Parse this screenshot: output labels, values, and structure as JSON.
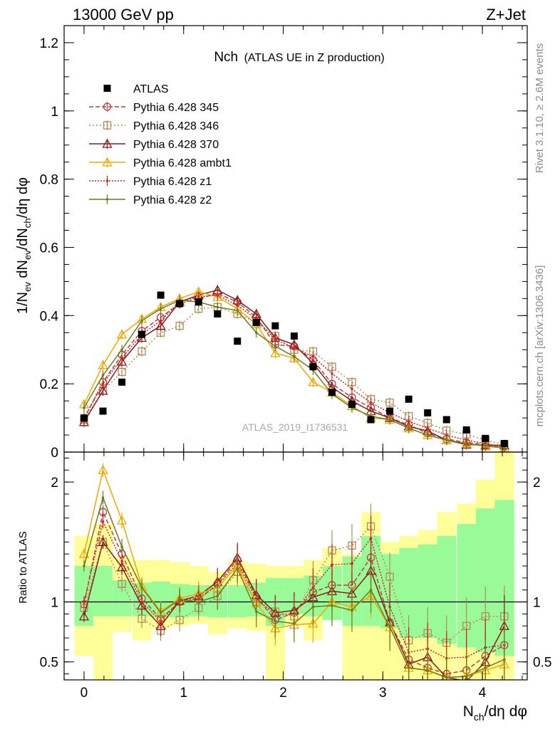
{
  "header": {
    "left": "13000 GeV pp",
    "right": "Z+Jet"
  },
  "side_labels": {
    "rivet": "Rivet 3.1.10, ≥ 2.6M events",
    "mcplots": "mcplots.cern.ch [arXiv:1306.3436]"
  },
  "chart_data": {
    "type": "line",
    "title_main": "Nch",
    "title_sub": "(ATLAS UE in Z production)",
    "watermark": "ATLAS_2019_I1736531",
    "xlabel": {
      "base": "N",
      "sub": "ch",
      "rest": "/dη dφ"
    },
    "ylabel_top": "1/N_ev dN_ch/dN_ch/dη dφ",
    "ylabel_bottom": "Ratio to ATLAS",
    "xlim": [
      -0.2,
      4.45
    ],
    "ylim_top": [
      0,
      1.25
    ],
    "ylim_bottom": [
      0.35,
      2.25
    ],
    "x_ticks": [
      "0",
      "1",
      "2",
      "3",
      "4"
    ],
    "y_ticks_top": [
      "0",
      "0.2",
      "0.4",
      "0.6",
      "0.8",
      "1",
      "1.2"
    ],
    "y_ticks_bottom": [
      "0.5",
      "1",
      "2"
    ],
    "x": [
      0.0,
      0.19,
      0.38,
      0.58,
      0.77,
      0.96,
      1.15,
      1.34,
      1.54,
      1.73,
      1.92,
      2.11,
      2.3,
      2.49,
      2.69,
      2.88,
      3.07,
      3.26,
      3.45,
      3.64,
      3.84,
      4.03,
      4.22
    ],
    "band_yellow_lo": [
      0.55,
      0.3,
      0.75,
      0.68,
      0.78,
      0.8,
      0.82,
      0.73,
      0.78,
      0.76,
      0.35,
      0.8,
      0.68,
      0.9,
      0.25,
      0.25,
      0.25,
      0.25,
      0.25,
      0.25,
      0.25,
      0.25,
      0.25
    ],
    "band_yellow_hi": [
      1.55,
      1.65,
      1.38,
      1.35,
      1.35,
      1.33,
      1.3,
      1.25,
      1.34,
      1.32,
      1.3,
      1.3,
      1.35,
      1.45,
      1.4,
      1.75,
      1.5,
      1.55,
      1.6,
      1.75,
      1.82,
      2.02,
      2.25
    ],
    "band_green_lo": [
      0.8,
      0.88,
      0.88,
      0.88,
      0.87,
      0.87,
      0.88,
      0.87,
      0.87,
      0.88,
      0.8,
      0.9,
      0.88,
      0.85,
      0.8,
      0.8,
      0.78,
      0.7,
      0.7,
      0.65,
      0.62,
      0.58,
      0.55
    ],
    "band_green_hi": [
      1.3,
      1.3,
      1.18,
      1.16,
      1.17,
      1.15,
      1.14,
      1.14,
      1.14,
      1.16,
      1.2,
      1.2,
      1.22,
      1.3,
      1.38,
      1.55,
      1.4,
      1.45,
      1.48,
      1.55,
      1.65,
      1.78,
      1.85
    ],
    "data": {
      "name": "ATLAS",
      "y": [
        0.1,
        0.12,
        0.205,
        0.345,
        0.46,
        0.435,
        0.44,
        0.405,
        0.325,
        0.38,
        0.37,
        0.34,
        0.25,
        0.175,
        0.14,
        0.095,
        0.12,
        0.155,
        0.115,
        0.095,
        0.065,
        0.04,
        0.025
      ]
    },
    "series": [
      {
        "name": "Pythia 6.428 345",
        "color": "#b5403f",
        "dash": "6,3",
        "marker": "circle",
        "y": [
          0.098,
          0.205,
          0.285,
          0.355,
          0.395,
          0.435,
          0.45,
          0.465,
          0.44,
          0.395,
          0.315,
          0.31,
          0.27,
          0.2,
          0.16,
          0.13,
          0.1,
          0.08,
          0.055,
          0.038,
          0.028,
          0.022,
          0.016
        ],
        "ratio": [
          0.98,
          1.75,
          1.4,
          1.03,
          0.86,
          1.0,
          1.02,
          1.15,
          1.35,
          1.04,
          0.85,
          0.91,
          1.08,
          1.14,
          1.14,
          1.37,
          0.83,
          0.52,
          0.45,
          0.4,
          0.43,
          0.55,
          0.64
        ]
      },
      {
        "name": "Pythia 6.428 346",
        "color": "#b08d55",
        "dash": "2,3",
        "marker": "square",
        "y": [
          0.095,
          0.18,
          0.235,
          0.295,
          0.35,
          0.37,
          0.42,
          0.425,
          0.405,
          0.38,
          0.34,
          0.3,
          0.295,
          0.25,
          0.205,
          0.155,
          0.145,
          0.105,
          0.085,
          0.063,
          0.052,
          0.035,
          0.022
        ],
        "ratio": [
          0.95,
          1.5,
          1.15,
          0.86,
          0.76,
          0.85,
          0.95,
          1.05,
          1.25,
          1.0,
          0.92,
          0.88,
          1.18,
          1.43,
          1.47,
          1.63,
          1.21,
          0.68,
          0.74,
          0.66,
          0.8,
          0.88,
          0.88
        ]
      },
      {
        "name": "Pythia 6.428 370",
        "color": "#8b1a1a",
        "dash": "",
        "marker": "triangle",
        "y": [
          0.088,
          0.18,
          0.265,
          0.335,
          0.37,
          0.44,
          0.46,
          0.475,
          0.445,
          0.405,
          0.335,
          0.315,
          0.26,
          0.19,
          0.15,
          0.12,
          0.1,
          0.075,
          0.062,
          0.035,
          0.022,
          0.02,
          0.02
        ],
        "ratio": [
          0.88,
          1.5,
          1.29,
          0.97,
          0.8,
          1.01,
          1.05,
          1.17,
          1.37,
          1.06,
          0.91,
          0.93,
          1.04,
          1.09,
          1.07,
          1.26,
          0.83,
          0.48,
          0.54,
          0.37,
          0.34,
          0.5,
          0.8
        ]
      },
      {
        "name": "Pythia 6.428 ambt1",
        "color": "#f0a800",
        "dash": "",
        "marker": "triangle",
        "y": [
          0.14,
          0.255,
          0.345,
          0.39,
          0.425,
          0.45,
          0.47,
          0.455,
          0.42,
          0.375,
          0.29,
          0.275,
          0.205,
          0.175,
          0.135,
          0.1,
          0.095,
          0.07,
          0.05,
          0.035,
          0.025,
          0.017,
          0.012
        ],
        "ratio": [
          1.4,
          2.1,
          1.68,
          1.13,
          0.92,
          1.03,
          1.07,
          1.12,
          1.3,
          0.99,
          0.78,
          0.81,
          0.82,
          1.0,
          0.96,
          1.05,
          0.79,
          0.45,
          0.43,
          0.37,
          0.38,
          0.43,
          0.48
        ]
      },
      {
        "name": "Pythia 6.428 z1",
        "color": "#d42020",
        "dash": "2,2",
        "marker": "dot",
        "y": [
          0.1,
          0.2,
          0.275,
          0.345,
          0.385,
          0.44,
          0.455,
          0.46,
          0.43,
          0.39,
          0.33,
          0.305,
          0.28,
          0.23,
          0.185,
          0.145,
          0.115,
          0.09,
          0.07,
          0.05,
          0.035,
          0.025,
          0.016
        ],
        "ratio": [
          1.0,
          1.67,
          1.34,
          1.0,
          0.84,
          1.01,
          1.03,
          1.14,
          1.32,
          1.03,
          0.89,
          0.9,
          1.12,
          1.31,
          1.32,
          1.53,
          0.96,
          0.58,
          0.61,
          0.53,
          0.54,
          0.62,
          0.64
        ]
      },
      {
        "name": "Pythia 6.428 z2",
        "color": "#6b7a1a",
        "dash": "",
        "marker": "dot",
        "y": [
          0.13,
          0.225,
          0.3,
          0.385,
          0.42,
          0.445,
          0.44,
          0.425,
          0.415,
          0.35,
          0.31,
          0.28,
          0.24,
          0.17,
          0.13,
          0.105,
          0.095,
          0.07,
          0.05,
          0.035,
          0.025,
          0.018,
          0.013
        ],
        "ratio": [
          1.3,
          1.87,
          1.46,
          1.12,
          0.91,
          1.02,
          1.0,
          1.05,
          1.28,
          0.92,
          0.84,
          0.82,
          0.96,
          0.97,
          0.93,
          1.1,
          0.79,
          0.45,
          0.43,
          0.37,
          0.38,
          0.45,
          0.52
        ]
      }
    ]
  }
}
